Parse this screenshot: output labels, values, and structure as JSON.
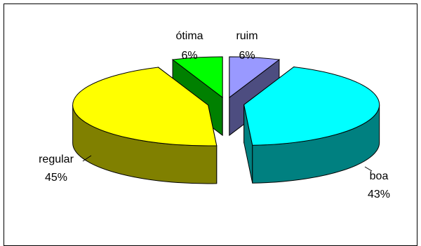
{
  "chart_data": {
    "type": "pie",
    "title": "",
    "style": "3d-exploded",
    "slices": [
      {
        "label": "ruim",
        "percent_label": "6%",
        "value": 6,
        "top_color": "#9999FF",
        "side_color": "#4D4D80"
      },
      {
        "label": "boa",
        "percent_label": "43%",
        "value": 43,
        "top_color": "#00FFFF",
        "side_color": "#008080"
      },
      {
        "label": "regular",
        "percent_label": "45%",
        "value": 45,
        "top_color": "#FFFF00",
        "side_color": "#808000"
      },
      {
        "label": "ótima",
        "percent_label": "6%",
        "value": 6,
        "top_color": "#00FF00",
        "side_color": "#008000"
      }
    ]
  }
}
